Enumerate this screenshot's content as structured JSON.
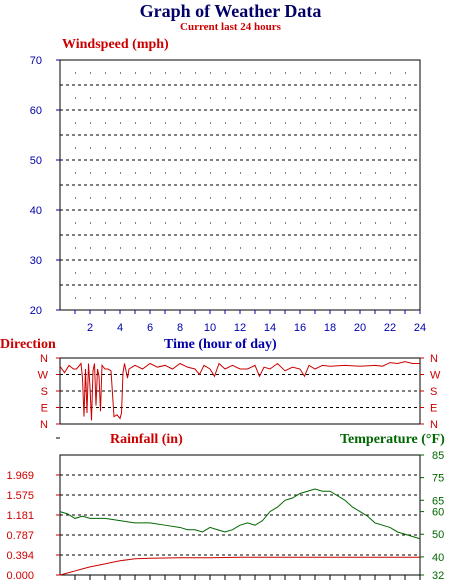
{
  "header": {
    "title": "Graph of Weather Data",
    "subtitle": "Current last 24 hours"
  },
  "colors": {
    "wind": "#0000aa",
    "direction": "#cc0000",
    "rain": "#cc0000",
    "temp": "#006600",
    "timelabel": "#0000aa"
  },
  "chart_data": [
    {
      "type": "line",
      "title": "Windspeed (mph)",
      "xlabel": "Time (hour of day)",
      "ylabel": "Windspeed (mph)",
      "ylim": [
        20,
        70
      ],
      "yticks": [
        "70",
        "60",
        "50",
        "40",
        "30",
        "20"
      ],
      "xlim": [
        0,
        24
      ],
      "xticks": [
        "2",
        "4",
        "6",
        "8",
        "10",
        "12",
        "14",
        "16",
        "18",
        "20",
        "22",
        "24"
      ],
      "grid": true,
      "series": []
    },
    {
      "type": "line",
      "title": "Direction",
      "x_axis": "hour of day",
      "categories_left": [
        "N",
        "W",
        "S",
        "E",
        "N"
      ],
      "categories_right": [
        "N",
        "W",
        "S",
        "E",
        "N"
      ],
      "ylim": [
        0,
        360
      ],
      "x": [
        0.0,
        0.3,
        0.6,
        0.9,
        1.1,
        1.4,
        1.5,
        1.6,
        1.7,
        1.8,
        1.9,
        2.0,
        2.1,
        2.2,
        2.3,
        2.4,
        2.5,
        2.6,
        2.7,
        2.8,
        2.9,
        3.0,
        3.2,
        3.4,
        3.6,
        3.8,
        4.0,
        4.1,
        4.2,
        4.3,
        4.4,
        4.5,
        4.6,
        4.8,
        5.0,
        5.5,
        6.0,
        6.5,
        7.0,
        7.5,
        8.0,
        8.5,
        9.0,
        9.3,
        9.6,
        10.0,
        10.3,
        10.6,
        11.0,
        11.5,
        12.0,
        12.5,
        13.0,
        13.3,
        13.6,
        14.0,
        14.5,
        15.0,
        15.5,
        16.0,
        16.3,
        16.6,
        17.0,
        17.5,
        18.0,
        19.0,
        20.0,
        21.0,
        21.5,
        22.0,
        22.5,
        23.0,
        23.5,
        24.0
      ],
      "y": [
        315,
        280,
        320,
        300,
        300,
        330,
        250,
        40,
        300,
        60,
        330,
        200,
        20,
        290,
        330,
        100,
        300,
        260,
        70,
        320,
        310,
        300,
        300,
        290,
        40,
        50,
        30,
        60,
        280,
        330,
        290,
        250,
        300,
        310,
        320,
        300,
        330,
        310,
        320,
        300,
        330,
        310,
        300,
        270,
        320,
        300,
        260,
        330,
        300,
        320,
        300,
        300,
        320,
        260,
        310,
        300,
        330,
        290,
        310,
        300,
        260,
        320,
        300,
        320,
        315,
        320,
        315,
        320,
        315,
        335,
        330,
        340,
        330,
        330
      ]
    },
    {
      "type": "line",
      "title": "Rainfall (in)",
      "ylabel": "Rainfall (in)",
      "ylim": [
        0,
        2.362
      ],
      "yticks": [
        "1.969",
        "1.575",
        "1.181",
        "0.787",
        "0.394",
        "0.000"
      ],
      "x": [
        0,
        0.5,
        1.0,
        1.5,
        2.0,
        2.5,
        3.0,
        3.5,
        4.0,
        5.0,
        6.0,
        8.0,
        10.0,
        12.0,
        14.0,
        16.0,
        18.0,
        20.0,
        22.0,
        24.0
      ],
      "y": [
        0.0,
        0.04,
        0.08,
        0.12,
        0.16,
        0.19,
        0.22,
        0.25,
        0.28,
        0.32,
        0.33,
        0.34,
        0.34,
        0.35,
        0.35,
        0.35,
        0.35,
        0.35,
        0.35,
        0.35
      ]
    },
    {
      "type": "line",
      "title": "Temperature (°F)",
      "ylabel": "Temperature (°F)",
      "ylim": [
        32,
        85
      ],
      "yticks": [
        "85",
        "75",
        "65",
        "60",
        "50",
        "40",
        "32"
      ],
      "x": [
        0,
        0.5,
        1.0,
        1.5,
        2.0,
        3.0,
        4.0,
        5.0,
        6.0,
        7.0,
        8.0,
        8.5,
        9.0,
        9.5,
        10.0,
        10.5,
        11.0,
        11.5,
        12.0,
        12.5,
        13.0,
        13.5,
        14.0,
        14.5,
        15.0,
        15.5,
        16.0,
        16.5,
        17.0,
        17.5,
        18.0,
        18.5,
        19.0,
        19.5,
        20.0,
        20.5,
        21.0,
        21.5,
        22.0,
        22.5,
        23.0,
        23.5,
        24.0
      ],
      "y": [
        60,
        59,
        57,
        58,
        57,
        57,
        56,
        55,
        55,
        54,
        53,
        52,
        52,
        51,
        53,
        52,
        51,
        52,
        54,
        55,
        54,
        56,
        60,
        62,
        65,
        66,
        68,
        69,
        70,
        69,
        69,
        67,
        65,
        62,
        60,
        58,
        55,
        54,
        53,
        51,
        50,
        49,
        48
      ]
    }
  ]
}
